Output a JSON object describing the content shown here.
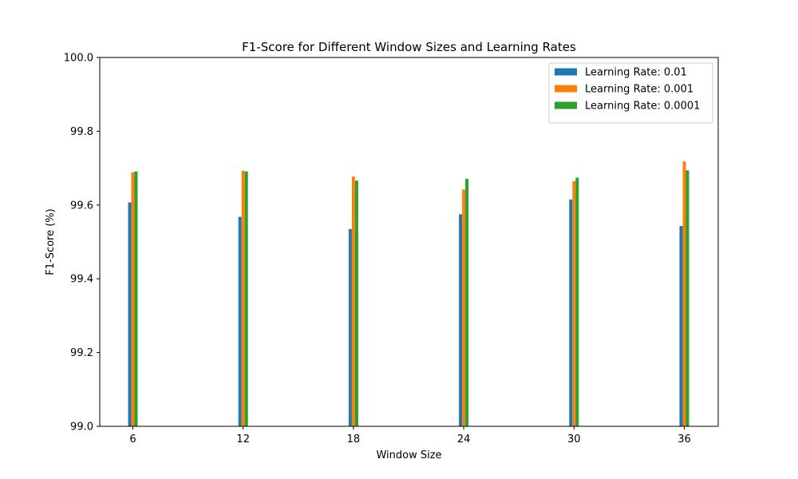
{
  "chart_data": {
    "type": "bar",
    "title": "F1-Score for Different Window Sizes and Learning Rates",
    "xlabel": "Window Size",
    "ylabel": "F1-Score (%)",
    "categories": [
      "6",
      "12",
      "18",
      "24",
      "30",
      "36"
    ],
    "ylim": [
      99.0,
      100.0
    ],
    "yticks": [
      "99.0",
      "99.2",
      "99.4",
      "99.6",
      "99.8",
      "100.0"
    ],
    "grid": false,
    "legend_position": "top-right",
    "series": [
      {
        "name": "Learning Rate: 0.01",
        "color": "#1f77b4",
        "values": [
          99.607,
          99.568,
          99.535,
          99.575,
          99.615,
          99.543
        ]
      },
      {
        "name": "Learning Rate: 0.001",
        "color": "#ff7f0e",
        "values": [
          99.689,
          99.693,
          99.677,
          99.642,
          99.665,
          99.718
        ]
      },
      {
        "name": "Learning Rate: 0.0001",
        "color": "#2ca02c",
        "values": [
          99.691,
          99.691,
          99.666,
          99.671,
          99.674,
          99.694
        ]
      }
    ]
  }
}
